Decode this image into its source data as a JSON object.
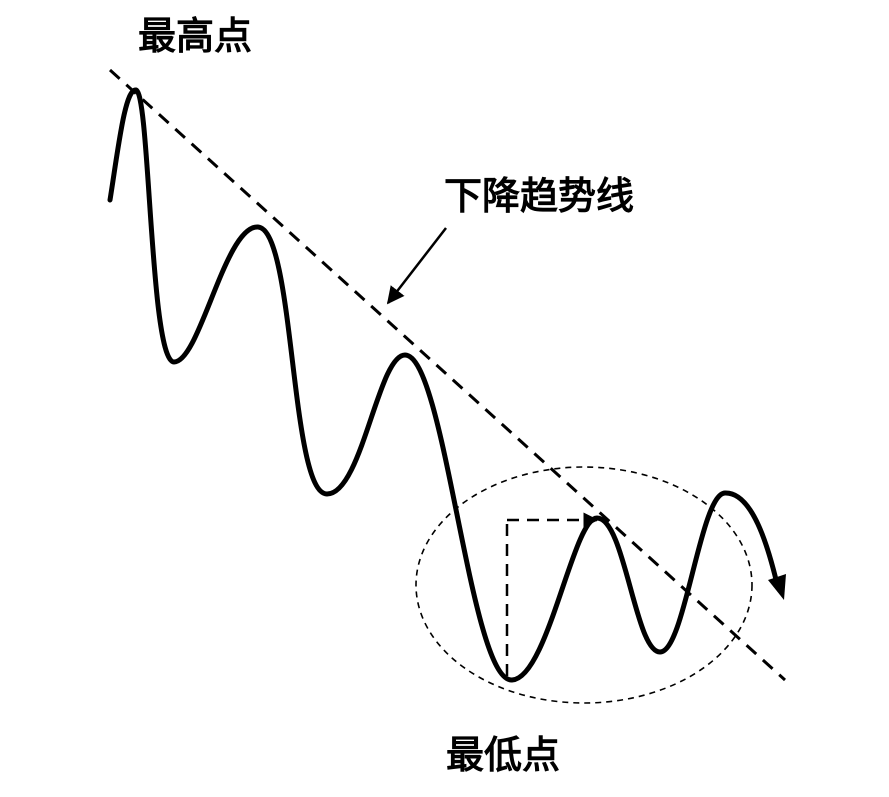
{
  "labels": {
    "highest_point": "最高点",
    "downtrend_line": "下降趋势线",
    "lowest_point": "最低点"
  },
  "colors": {
    "ink": "#000000",
    "background": "#ffffff"
  }
}
